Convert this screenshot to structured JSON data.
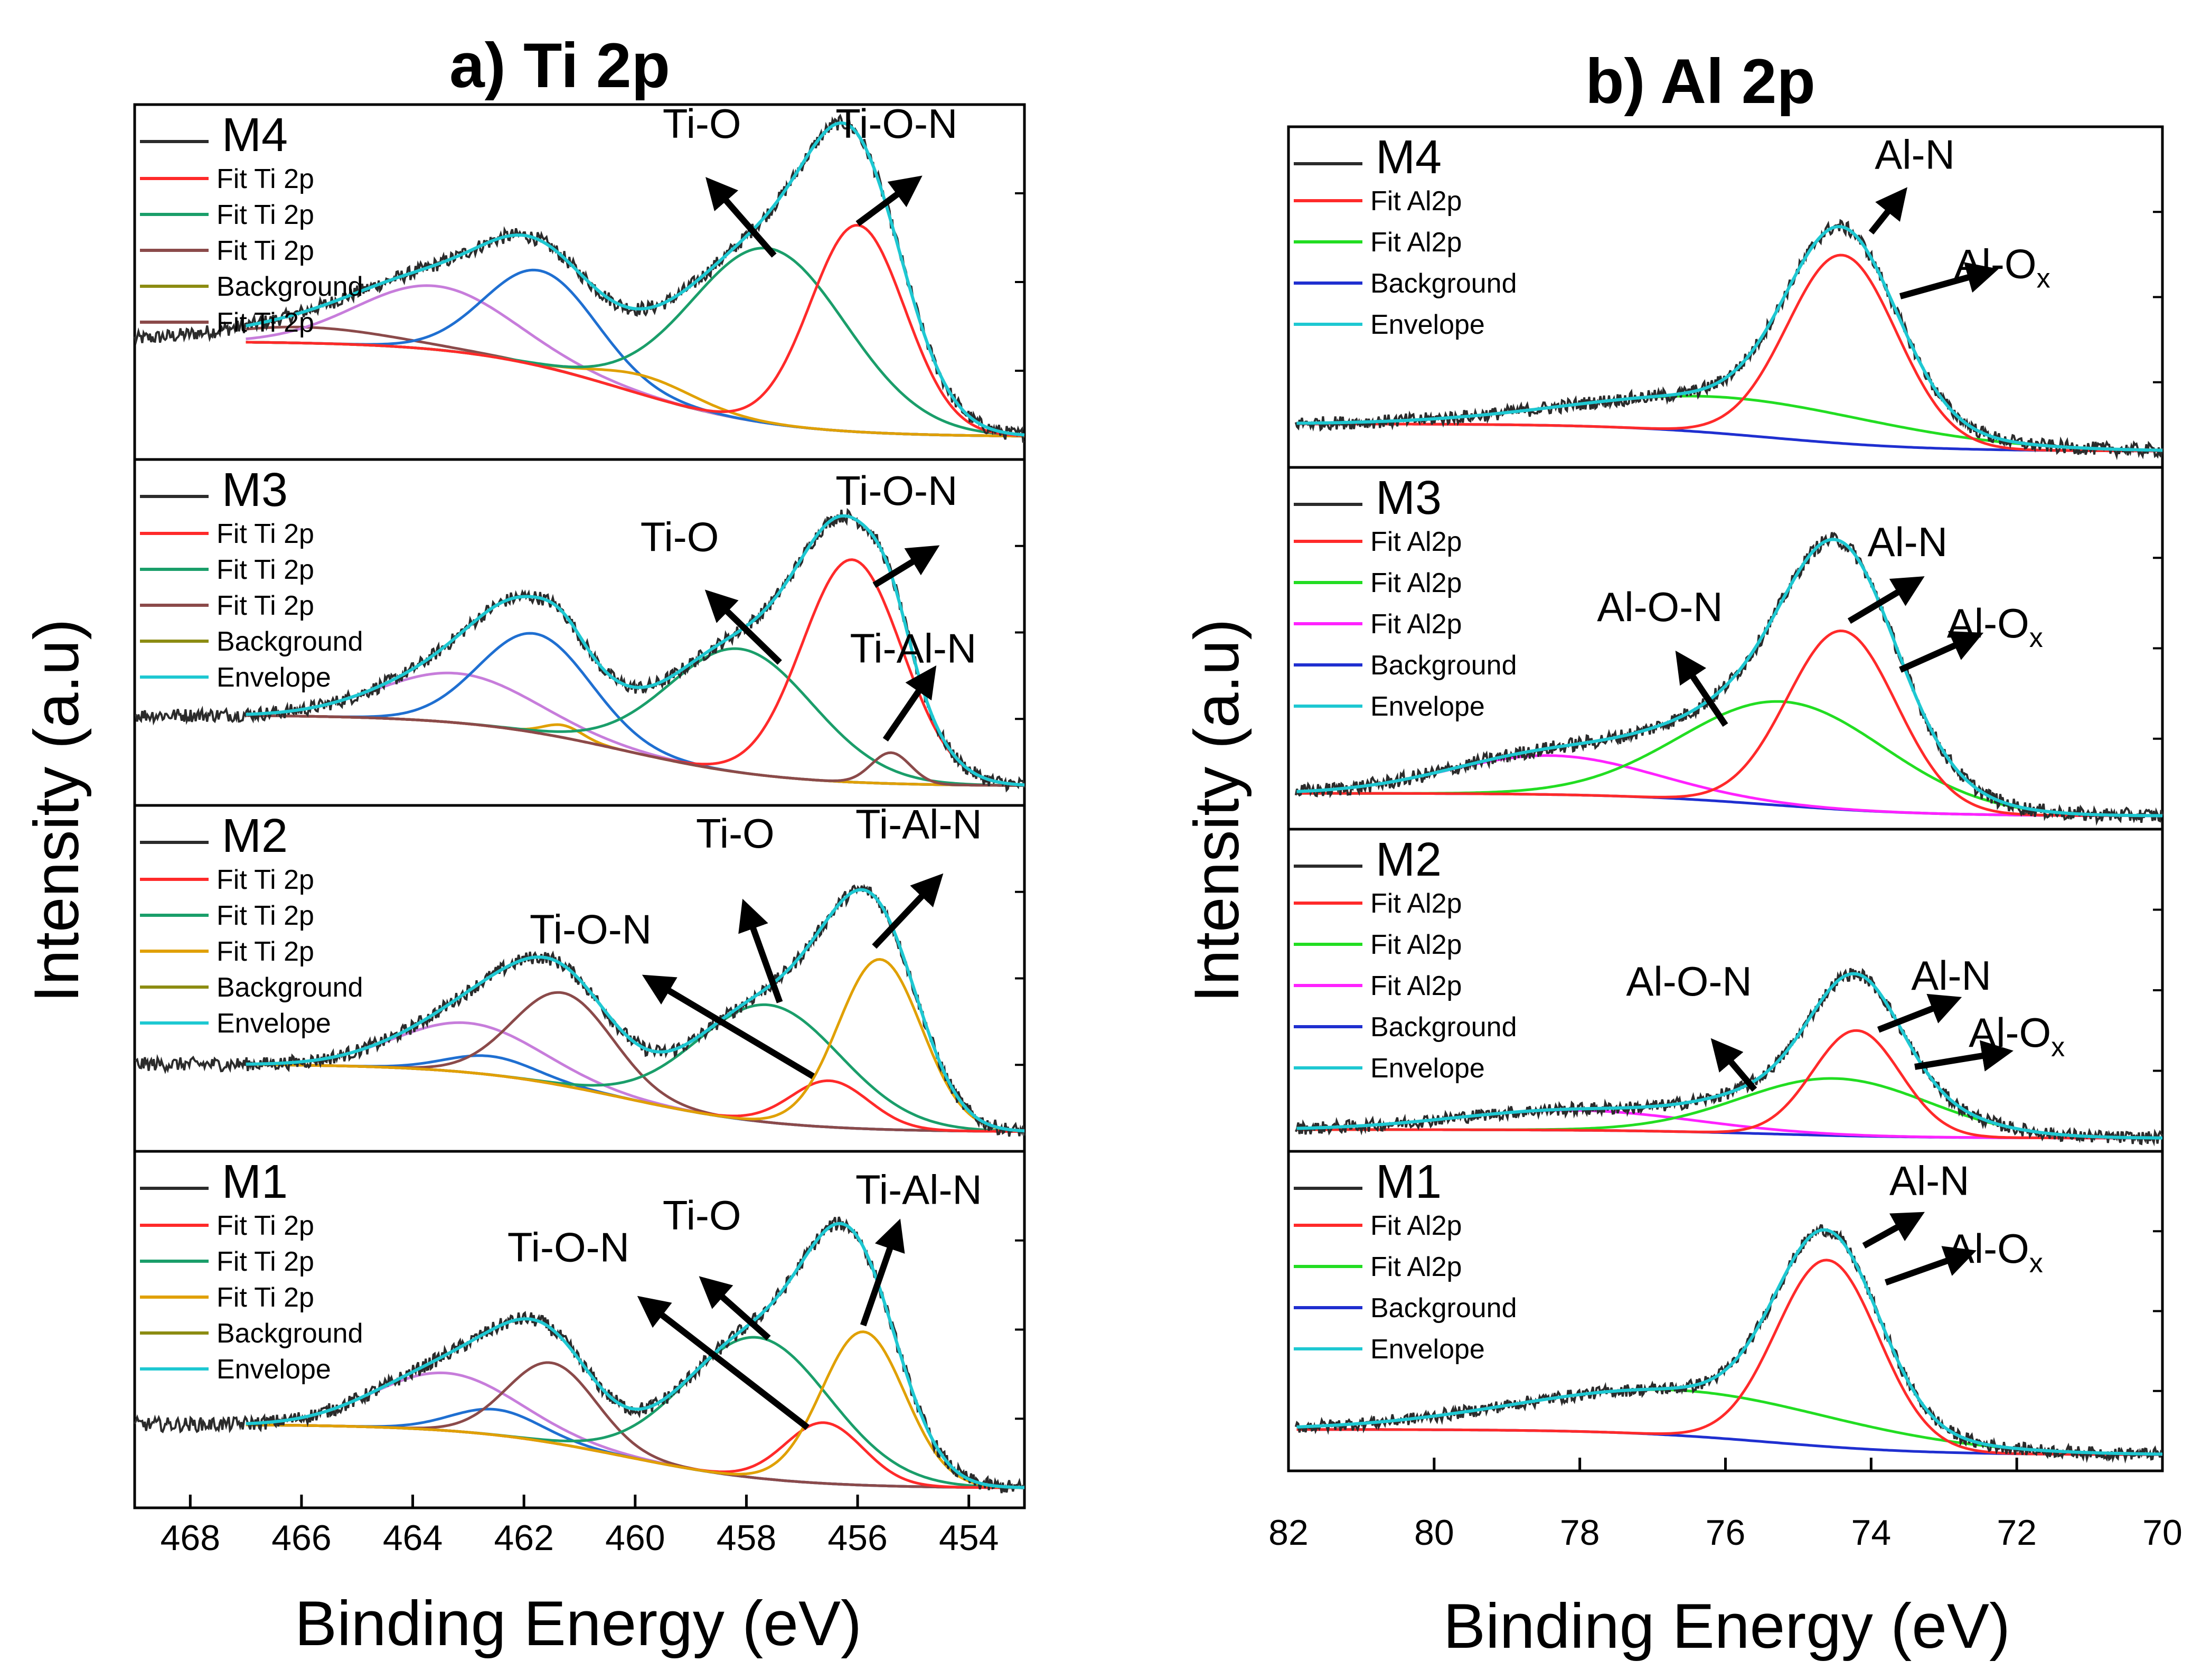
{
  "colors": {
    "data": "#2b2b2b",
    "red": "#ff2a2a",
    "green_dark": "#1a9e6a",
    "green_light": "#22dd22",
    "brown": "#8b4a4a",
    "violet": "#c77ddb",
    "blue_ti": "#1f6fd1",
    "orange": "#e0a000",
    "background_ti": "#8c8c12",
    "background_al": "#1f2fd0",
    "magenta": "#ff22ff",
    "envelope": "#1ec8d2",
    "arrow": "#000000"
  },
  "chart_data": [
    {
      "type": "line",
      "title": "a) Ti 2p",
      "xlabel": "Binding Energy (eV)",
      "ylabel": "Intensity (a.u)",
      "xlim": [
        469,
        453
      ],
      "ylim": [
        0,
        1
      ],
      "x_ticks": [
        468,
        466,
        464,
        462,
        460,
        458,
        456,
        454
      ],
      "axis_reversed": true,
      "panels": [
        {
          "sample": "M4",
          "legend": [
            {
              "label": "Fit Ti 2p",
              "color": "red"
            },
            {
              "label": "Fit Ti 2p",
              "color": "green_dark"
            },
            {
              "label": "Fit Ti 2p",
              "color": "brown"
            },
            {
              "label": "Background",
              "color": "background_ti"
            },
            {
              "label": "Fit Ti 2p",
              "color": "brown"
            }
          ],
          "background": {
            "high": 0.33,
            "low": 0.03
          },
          "peaks": [
            {
              "center": 466.0,
              "height": 0.05,
              "width": 1.6,
              "color": "brown"
            },
            {
              "center": 463.6,
              "height": 0.2,
              "width": 1.4,
              "color": "violet"
            },
            {
              "center": 461.7,
              "height": 0.3,
              "width": 1.0,
              "color": "blue_ti"
            },
            {
              "center": 459.8,
              "height": 0.06,
              "width": 0.9,
              "color": "orange"
            },
            {
              "center": 457.6,
              "height": 0.55,
              "width": 1.4,
              "color": "green_dark"
            },
            {
              "center": 456.0,
              "height": 0.65,
              "width": 0.85,
              "color": "red"
            }
          ],
          "annotations": [
            {
              "text": "Ti-O",
              "x": 458.8,
              "y": 0.97,
              "arrow_from": [
                457.5,
                0.6
              ],
              "arrow_to": [
                458.6,
                0.82
              ]
            },
            {
              "text": "Ti-O-N",
              "x": 455.3,
              "y": 0.97,
              "arrow_from": [
                456.0,
                0.7
              ],
              "arrow_to": [
                455.0,
                0.83
              ]
            }
          ]
        },
        {
          "sample": "M3",
          "legend": [
            {
              "label": "Fit Ti 2p",
              "color": "red"
            },
            {
              "label": "Fit Ti 2p",
              "color": "green_dark"
            },
            {
              "label": "Fit Ti 2p",
              "color": "brown"
            },
            {
              "label": "Background",
              "color": "background_ti"
            },
            {
              "label": "Envelope",
              "color": "envelope"
            }
          ],
          "background": {
            "high": 0.25,
            "low": 0.02
          },
          "peaks": [
            {
              "center": 463.2,
              "height": 0.16,
              "width": 1.4,
              "color": "violet"
            },
            {
              "center": 461.8,
              "height": 0.32,
              "width": 1.0,
              "color": "blue_ti"
            },
            {
              "center": 461.3,
              "height": 0.04,
              "width": 0.35,
              "color": "orange"
            },
            {
              "center": 458.1,
              "height": 0.4,
              "width": 1.3,
              "color": "green_dark"
            },
            {
              "center": 456.1,
              "height": 0.72,
              "width": 0.9,
              "color": "red"
            },
            {
              "center": 455.4,
              "height": 0.1,
              "width": 0.35,
              "color": "brown"
            }
          ],
          "annotations": [
            {
              "text": "Ti-O",
              "x": 459.2,
              "y": 0.78,
              "arrow_from": [
                457.4,
                0.42
              ],
              "arrow_to": [
                458.6,
                0.63
              ]
            },
            {
              "text": "Ti-O-N",
              "x": 455.3,
              "y": 0.93,
              "arrow_from": [
                455.7,
                0.67
              ],
              "arrow_to": [
                454.7,
                0.78
              ]
            },
            {
              "text": "Ti-Al-N",
              "x": 455.0,
              "y": 0.42,
              "arrow_from": [
                455.5,
                0.17
              ],
              "arrow_to": [
                454.7,
                0.38
              ]
            }
          ]
        },
        {
          "sample": "M2",
          "legend": [
            {
              "label": "Fit Ti 2p",
              "color": "red"
            },
            {
              "label": "Fit Ti 2p",
              "color": "green_dark"
            },
            {
              "label": "Fit Ti 2p",
              "color": "orange"
            },
            {
              "label": "Background",
              "color": "background_ti"
            },
            {
              "label": "Envelope",
              "color": "envelope"
            }
          ],
          "background": {
            "high": 0.24,
            "low": 0.02
          },
          "peaks": [
            {
              "center": 463.0,
              "height": 0.16,
              "width": 1.3,
              "color": "violet"
            },
            {
              "center": 462.6,
              "height": 0.06,
              "width": 0.8,
              "color": "blue_ti"
            },
            {
              "center": 461.3,
              "height": 0.3,
              "width": 0.9,
              "color": "brown"
            },
            {
              "center": 457.6,
              "height": 0.38,
              "width": 1.3,
              "color": "green_dark"
            },
            {
              "center": 456.5,
              "height": 0.15,
              "width": 0.7,
              "color": "red"
            },
            {
              "center": 455.6,
              "height": 0.55,
              "width": 0.75,
              "color": "orange"
            }
          ],
          "annotations": [
            {
              "text": "Ti-O",
              "x": 458.2,
              "y": 0.94,
              "arrow_from": [
                457.4,
                0.44
              ],
              "arrow_to": [
                458.0,
                0.74
              ]
            },
            {
              "text": "Ti-O-N",
              "x": 460.8,
              "y": 0.63,
              "arrow_from": [
                456.8,
                0.2
              ],
              "arrow_to": [
                459.7,
                0.51
              ]
            },
            {
              "text": "Ti-Al-N",
              "x": 454.9,
              "y": 0.97,
              "arrow_from": [
                455.7,
                0.62
              ],
              "arrow_to": [
                454.6,
                0.83
              ]
            }
          ]
        },
        {
          "sample": "M1",
          "legend": [
            {
              "label": "Fit Ti 2p",
              "color": "red"
            },
            {
              "label": "Fit Ti 2p",
              "color": "green_dark"
            },
            {
              "label": "Fit Ti 2p",
              "color": "orange"
            },
            {
              "label": "Background",
              "color": "background_ti"
            },
            {
              "label": "Envelope",
              "color": "envelope"
            }
          ],
          "background": {
            "high": 0.22,
            "low": 0.02
          },
          "peaks": [
            {
              "center": 463.4,
              "height": 0.18,
              "width": 1.3,
              "color": "violet"
            },
            {
              "center": 462.5,
              "height": 0.08,
              "width": 0.8,
              "color": "blue_ti"
            },
            {
              "center": 461.5,
              "height": 0.25,
              "width": 0.8,
              "color": "brown"
            },
            {
              "center": 457.8,
              "height": 0.44,
              "width": 1.3,
              "color": "green_dark"
            },
            {
              "center": 456.6,
              "height": 0.19,
              "width": 0.7,
              "color": "red"
            },
            {
              "center": 455.9,
              "height": 0.48,
              "width": 0.75,
              "color": "orange"
            }
          ],
          "annotations": [
            {
              "text": "Ti-O",
              "x": 458.8,
              "y": 0.83,
              "arrow_from": [
                457.6,
                0.49
              ],
              "arrow_to": [
                458.7,
                0.66
              ]
            },
            {
              "text": "Ti-O-N",
              "x": 461.2,
              "y": 0.73,
              "arrow_from": [
                456.9,
                0.21
              ],
              "arrow_to": [
                459.8,
                0.6
              ]
            },
            {
              "text": "Ti-Al-N",
              "x": 454.9,
              "y": 0.91,
              "arrow_from": [
                455.9,
                0.53
              ],
              "arrow_to": [
                455.3,
                0.83
              ]
            }
          ]
        }
      ]
    },
    {
      "type": "line",
      "title": "b) Al 2p",
      "xlabel": "Binding Energy (eV)",
      "ylabel": "Intensity (a.u)",
      "xlim": [
        82,
        70
      ],
      "ylim": [
        0,
        1
      ],
      "x_ticks": [
        82,
        80,
        78,
        76,
        74,
        72,
        70
      ],
      "axis_reversed": true,
      "panels": [
        {
          "sample": "M4",
          "legend": [
            {
              "label": "Fit Al2p",
              "color": "red"
            },
            {
              "label": "Fit Al2p",
              "color": "green_light"
            },
            {
              "label": "Background",
              "color": "background_al"
            },
            {
              "label": "Envelope",
              "color": "envelope"
            }
          ],
          "background": {
            "high": 0.1,
            "low": 0.01
          },
          "peaks": [
            {
              "center": 75.9,
              "height": 0.12,
              "width": 2.1,
              "color": "green_light"
            },
            {
              "center": 74.4,
              "height": 0.62,
              "width": 0.75,
              "color": "red"
            }
          ],
          "annotations": [
            {
              "text": "Al-N",
              "x": 73.4,
              "y": 0.94,
              "arrow_from": [
                74.0,
                0.73
              ],
              "arrow_to": [
                73.6,
                0.85
              ]
            },
            {
              "text": "Al-Ox",
              "x": 72.2,
              "y": 0.58,
              "arrow_from": [
                73.6,
                0.52
              ],
              "arrow_to": [
                72.4,
                0.6
              ]
            }
          ]
        },
        {
          "sample": "M3",
          "legend": [
            {
              "label": "Fit Al2p",
              "color": "red"
            },
            {
              "label": "Fit Al2p",
              "color": "green_light"
            },
            {
              "label": "Fit Al2p",
              "color": "magenta"
            },
            {
              "label": "Background",
              "color": "background_al"
            },
            {
              "label": "Envelope",
              "color": "envelope"
            }
          ],
          "background": {
            "high": 0.07,
            "low": 0.0
          },
          "peaks": [
            {
              "center": 78.4,
              "height": 0.12,
              "width": 1.4,
              "color": "magenta"
            },
            {
              "center": 75.2,
              "height": 0.32,
              "width": 1.4,
              "color": "green_light"
            },
            {
              "center": 74.4,
              "height": 0.55,
              "width": 0.75,
              "color": "red"
            }
          ],
          "annotations": [
            {
              "text": "Al-N",
              "x": 73.5,
              "y": 0.8,
              "arrow_from": [
                74.3,
                0.6
              ],
              "arrow_to": [
                73.4,
                0.72
              ]
            },
            {
              "text": "Al-Ox",
              "x": 72.3,
              "y": 0.55,
              "arrow_from": [
                73.6,
                0.45
              ],
              "arrow_to": [
                72.6,
                0.55
              ]
            },
            {
              "text": "Al-O-N",
              "x": 76.9,
              "y": 0.6,
              "arrow_from": [
                76.0,
                0.28
              ],
              "arrow_to": [
                76.6,
                0.48
              ]
            }
          ]
        },
        {
          "sample": "M2",
          "legend": [
            {
              "label": "Fit Al2p",
              "color": "red"
            },
            {
              "label": "Fit Al2p",
              "color": "green_light"
            },
            {
              "label": "Fit Al2p",
              "color": "magenta"
            },
            {
              "label": "Background",
              "color": "background_al"
            },
            {
              "label": "Envelope",
              "color": "envelope"
            }
          ],
          "background": {
            "high": 0.03,
            "low": 0.0
          },
          "peaks": [
            {
              "center": 78.1,
              "height": 0.07,
              "width": 1.6,
              "color": "magenta"
            },
            {
              "center": 74.5,
              "height": 0.2,
              "width": 1.3,
              "color": "green_light"
            },
            {
              "center": 74.2,
              "height": 0.37,
              "width": 0.6,
              "color": "red"
            }
          ],
          "annotations": [
            {
              "text": "Al-N",
              "x": 72.9,
              "y": 0.52,
              "arrow_from": [
                73.9,
                0.38
              ],
              "arrow_to": [
                72.9,
                0.48
              ]
            },
            {
              "text": "Al-Ox",
              "x": 72.0,
              "y": 0.32,
              "arrow_from": [
                73.4,
                0.25
              ],
              "arrow_to": [
                72.2,
                0.3
              ]
            },
            {
              "text": "Al-O-N",
              "x": 76.5,
              "y": 0.5,
              "arrow_from": [
                75.6,
                0.17
              ],
              "arrow_to": [
                76.1,
                0.32
              ]
            }
          ]
        },
        {
          "sample": "M1",
          "legend": [
            {
              "label": "Fit Al2p",
              "color": "red"
            },
            {
              "label": "Fit Al2p",
              "color": "green_light"
            },
            {
              "label": "Background",
              "color": "background_al"
            },
            {
              "label": "Envelope",
              "color": "envelope"
            }
          ],
          "background": {
            "high": 0.1,
            "low": 0.01
          },
          "peaks": [
            {
              "center": 76.6,
              "height": 0.16,
              "width": 2.2,
              "color": "green_light"
            },
            {
              "center": 74.6,
              "height": 0.66,
              "width": 0.7,
              "color": "red"
            }
          ],
          "annotations": [
            {
              "text": "Al-N",
              "x": 73.2,
              "y": 0.93,
              "arrow_from": [
                74.1,
                0.75
              ],
              "arrow_to": [
                73.4,
                0.85
              ]
            },
            {
              "text": "Al-Ox",
              "x": 72.3,
              "y": 0.69,
              "arrow_from": [
                73.8,
                0.62
              ],
              "arrow_to": [
                72.7,
                0.72
              ]
            }
          ]
        }
      ]
    }
  ]
}
